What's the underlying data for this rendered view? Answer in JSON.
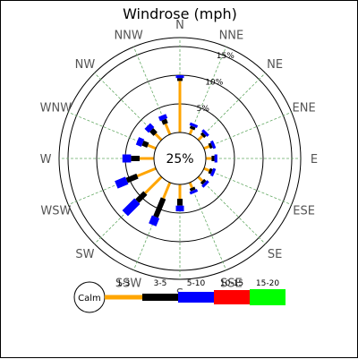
{
  "chart_data": {
    "type": "windrose",
    "title": "Windrose (mph)",
    "calm_label": "25%",
    "legend_calm_label": "Calm",
    "directions": [
      "N",
      "NNE",
      "NE",
      "ENE",
      "E",
      "ESE",
      "SE",
      "SSE",
      "S",
      "SSW",
      "SW",
      "WSW",
      "W",
      "WNW",
      "NW",
      "NNW"
    ],
    "ring_labels": [
      "5%",
      "10%",
      "15%"
    ],
    "ring_values": [
      5,
      10,
      15
    ],
    "series": [
      {
        "name": "1-3",
        "color": "#FFA500",
        "values": [
          9.0,
          1.0,
          1.0,
          1.0,
          1.0,
          1.0,
          1.0,
          1.0,
          2.5,
          3.0,
          4.0,
          3.5,
          2.5,
          1.5,
          1.5,
          2.0
        ]
      },
      {
        "name": "3-5",
        "color": "#000000",
        "values": [
          0.5,
          0.5,
          0.5,
          0.5,
          0.5,
          0.5,
          0.5,
          0.5,
          1.2,
          3.5,
          2.0,
          2.0,
          1.5,
          1.0,
          1.0,
          0.8
        ]
      },
      {
        "name": "5-10",
        "color": "#0000FF",
        "values": [
          0.5,
          0.5,
          0.5,
          0.5,
          0.5,
          0.5,
          0.5,
          0.5,
          1.0,
          1.5,
          3.0,
          2.0,
          1.5,
          1.0,
          1.0,
          0.8
        ]
      },
      {
        "name": "10-15",
        "color": "#FF0000",
        "values": [
          0,
          0,
          0,
          0,
          0,
          0,
          0,
          0,
          0,
          0,
          0,
          0,
          0,
          0,
          0,
          0
        ]
      },
      {
        "name": "15-20",
        "color": "#00FF00",
        "values": [
          0,
          0,
          0,
          0,
          0,
          0,
          0,
          0,
          0,
          0,
          0,
          0,
          0,
          0,
          0,
          0
        ]
      }
    ],
    "colors": {
      "gridline": "#000000",
      "spoke": "#66AA66",
      "label": "#555555"
    }
  }
}
